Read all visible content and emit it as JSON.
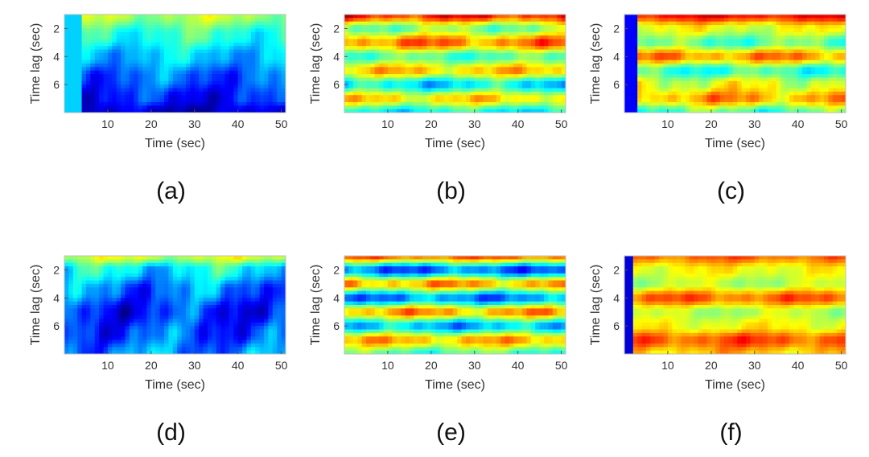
{
  "figure": {
    "colormap": [
      "#00008f",
      "#0000ff",
      "#0080ff",
      "#00ffff",
      "#80ff80",
      "#ffff00",
      "#ff8000",
      "#ff0000",
      "#800000"
    ],
    "panel_frame_color": "#bfbfbf"
  },
  "chart_data": [
    {
      "type": "heatmap",
      "label": "(a)",
      "xlabel": "Time (sec)",
      "ylabel": "Time lag (sec)",
      "xlim": [
        0,
        51
      ],
      "ylim": [
        1,
        8
      ],
      "y_reversed": true,
      "xticks": [
        10,
        20,
        30,
        40,
        50
      ],
      "yticks": [
        2,
        4,
        6
      ],
      "bands": [
        {
          "lag": 1,
          "level": 0.55,
          "amp": 0.05
        },
        {
          "lag": 2.5,
          "level": 0.42,
          "amp": 0.06
        },
        {
          "lag": 4,
          "level": 0.32,
          "amp": 0.06
        },
        {
          "lag": 5.5,
          "level": 0.22,
          "amp": 0.07
        },
        {
          "lag": 7,
          "level": 0.14,
          "amp": 0.07
        },
        {
          "lag": 8,
          "level": 0.06,
          "amp": 0.05
        }
      ],
      "edge": {
        "x_max": 4,
        "level": 0.33
      }
    },
    {
      "type": "heatmap",
      "label": "(b)",
      "xlabel": "Time (sec)",
      "ylabel": "Time lag (sec)",
      "xlim": [
        0,
        51
      ],
      "ylim": [
        1,
        8
      ],
      "y_reversed": true,
      "xticks": [
        10,
        20,
        30,
        40,
        50
      ],
      "yticks": [
        2,
        4,
        6
      ],
      "bands": [
        {
          "lag": 1,
          "level": 0.86,
          "amp": 0.07
        },
        {
          "lag": 2,
          "level": 0.5,
          "amp": 0.06
        },
        {
          "lag": 3,
          "level": 0.76,
          "amp": 0.07
        },
        {
          "lag": 4,
          "level": 0.45,
          "amp": 0.05
        },
        {
          "lag": 5,
          "level": 0.68,
          "amp": 0.06
        },
        {
          "lag": 6,
          "level": 0.35,
          "amp": 0.07
        },
        {
          "lag": 7,
          "level": 0.66,
          "amp": 0.06
        },
        {
          "lag": 8,
          "level": 0.38,
          "amp": 0.06
        }
      ],
      "edge": {
        "x_max": 0,
        "level": 0
      }
    },
    {
      "type": "heatmap",
      "label": "(c)",
      "xlabel": "Time (sec)",
      "ylabel": "Time lag (sec)",
      "xlim": [
        0,
        51
      ],
      "ylim": [
        1,
        8
      ],
      "y_reversed": true,
      "xticks": [
        10,
        20,
        30,
        40,
        50
      ],
      "yticks": [
        2,
        4,
        6
      ],
      "bands": [
        {
          "lag": 1,
          "level": 0.88,
          "amp": 0.04
        },
        {
          "lag": 2,
          "level": 0.6,
          "amp": 0.05
        },
        {
          "lag": 3,
          "level": 0.46,
          "amp": 0.06
        },
        {
          "lag": 4,
          "level": 0.74,
          "amp": 0.06
        },
        {
          "lag": 5,
          "level": 0.42,
          "amp": 0.06
        },
        {
          "lag": 6,
          "level": 0.6,
          "amp": 0.07
        },
        {
          "lag": 7,
          "level": 0.72,
          "amp": 0.07
        },
        {
          "lag": 8,
          "level": 0.45,
          "amp": 0.07
        }
      ],
      "edge": {
        "x_max": 3,
        "level": 0.12
      }
    },
    {
      "type": "heatmap",
      "label": "(d)",
      "xlabel": "Time (sec)",
      "ylabel": "Time lag (sec)",
      "xlim": [
        0,
        51
      ],
      "ylim": [
        1,
        8
      ],
      "y_reversed": true,
      "xticks": [
        10,
        20,
        30,
        40,
        50
      ],
      "yticks": [
        2,
        4,
        6
      ],
      "bands": [
        {
          "lag": 1,
          "level": 0.58,
          "amp": 0.05
        },
        {
          "lag": 2,
          "level": 0.36,
          "amp": 0.08
        },
        {
          "lag": 3.5,
          "level": 0.24,
          "amp": 0.09
        },
        {
          "lag": 5,
          "level": 0.16,
          "amp": 0.09
        },
        {
          "lag": 6.5,
          "level": 0.2,
          "amp": 0.09
        },
        {
          "lag": 8,
          "level": 0.26,
          "amp": 0.08
        }
      ],
      "edge": {
        "x_max": 0,
        "level": 0
      }
    },
    {
      "type": "heatmap",
      "label": "(e)",
      "xlabel": "Time (sec)",
      "ylabel": "Time lag (sec)",
      "xlim": [
        0,
        51
      ],
      "ylim": [
        1,
        8
      ],
      "y_reversed": true,
      "xticks": [
        10,
        20,
        30,
        40,
        50
      ],
      "yticks": [
        2,
        4,
        6
      ],
      "bands": [
        {
          "lag": 1,
          "level": 0.78,
          "amp": 0.05
        },
        {
          "lag": 2,
          "level": 0.22,
          "amp": 0.07
        },
        {
          "lag": 3,
          "level": 0.72,
          "amp": 0.07
        },
        {
          "lag": 4,
          "level": 0.25,
          "amp": 0.07
        },
        {
          "lag": 5,
          "level": 0.72,
          "amp": 0.07
        },
        {
          "lag": 6,
          "level": 0.3,
          "amp": 0.07
        },
        {
          "lag": 7,
          "level": 0.7,
          "amp": 0.06
        },
        {
          "lag": 8,
          "level": 0.45,
          "amp": 0.06
        }
      ],
      "edge": {
        "x_max": 0,
        "level": 0
      }
    },
    {
      "type": "heatmap",
      "label": "(f)",
      "xlabel": "Time (sec)",
      "ylabel": "Time lag (sec)",
      "xlim": [
        0,
        51
      ],
      "ylim": [
        1,
        8
      ],
      "y_reversed": true,
      "xticks": [
        10,
        20,
        30,
        40,
        50
      ],
      "yticks": [
        2,
        4,
        6
      ],
      "bands": [
        {
          "lag": 1,
          "level": 0.78,
          "amp": 0.04
        },
        {
          "lag": 2,
          "level": 0.62,
          "amp": 0.04
        },
        {
          "lag": 3,
          "level": 0.55,
          "amp": 0.04
        },
        {
          "lag": 4,
          "level": 0.78,
          "amp": 0.05
        },
        {
          "lag": 5,
          "level": 0.55,
          "amp": 0.04
        },
        {
          "lag": 6,
          "level": 0.62,
          "amp": 0.04
        },
        {
          "lag": 7,
          "level": 0.8,
          "amp": 0.05
        },
        {
          "lag": 8,
          "level": 0.68,
          "amp": 0.05
        }
      ],
      "edge": {
        "x_max": 2,
        "level": 0.08
      }
    }
  ]
}
